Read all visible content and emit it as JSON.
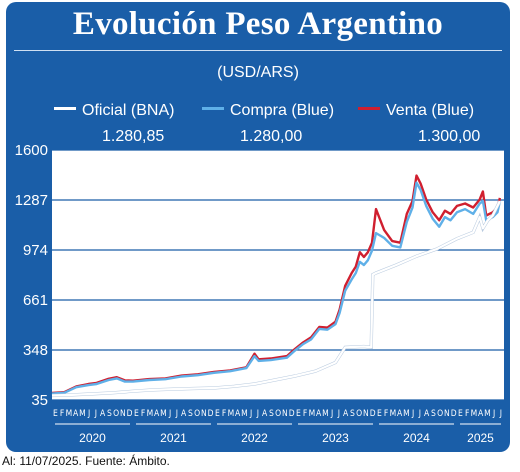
{
  "header": {
    "title": "Evolución Peso Argentino",
    "subtitle": "(USD/ARS)"
  },
  "legend": [
    {
      "label": "Oficial (BNA)",
      "value": "1.280,85",
      "color": "#ffffff"
    },
    {
      "label": "Compra (Blue)",
      "value": "1.280,00",
      "color": "#5fb0e8"
    },
    {
      "label": "Venta (Blue)",
      "value": "1.300,00",
      "color": "#d01f2f"
    }
  ],
  "footer": {
    "source": "Al: 11/07/2025. Fuente: Ámbito."
  },
  "colors": {
    "background": "#1a5ea8",
    "plot": "#ffffff",
    "oficial": "#ffffff",
    "compra": "#5fb0e8",
    "venta": "#d01f2f"
  },
  "chart_data": {
    "type": "line",
    "ylim": [
      35,
      1600
    ],
    "yticks": [
      "1600",
      "1287",
      "974",
      "661",
      "348",
      "35"
    ],
    "ytick_values": [
      1600,
      1287,
      974,
      661,
      348,
      35
    ],
    "grid": true,
    "legend_position": "top",
    "x_start": "2020-01",
    "x_end": "2025-07",
    "month_letters": [
      "E",
      "F",
      "M",
      "A",
      "M",
      "J",
      "J",
      "A",
      "S",
      "O",
      "N",
      "D",
      "E",
      "F",
      "M",
      "A",
      "M",
      "J",
      "J",
      "A",
      "S",
      "O",
      "N",
      "D",
      "E",
      "F",
      "M",
      "A",
      "M",
      "J",
      "J",
      "A",
      "S",
      "O",
      "N",
      "D",
      "E",
      "F",
      "M",
      "A",
      "M",
      "J",
      "J",
      "A",
      "S",
      "O",
      "N",
      "D",
      "E",
      "F",
      "M",
      "A",
      "M",
      "J",
      "J",
      "A",
      "S",
      "O",
      "N",
      "D",
      "E",
      "F",
      "M",
      "A",
      "M",
      "J",
      "J"
    ],
    "years": [
      "2020",
      "2021",
      "2022",
      "2023",
      "2024",
      "2025"
    ],
    "series": [
      {
        "name": "Oficial (BNA)",
        "x": [
          2020.0,
          2020.25,
          2020.5,
          2020.75,
          2021.0,
          2021.25,
          2021.5,
          2021.75,
          2022.0,
          2022.25,
          2022.5,
          2022.75,
          2023.0,
          2023.25,
          2023.5,
          2023.62,
          2023.85,
          2023.94,
          2023.96,
          2024.0,
          2024.25,
          2024.5,
          2024.75,
          2025.0,
          2025.2,
          2025.28,
          2025.32,
          2025.38,
          2025.44,
          2025.5,
          2025.53
        ],
        "values": [
          63,
          67,
          73,
          80,
          90,
          98,
          103,
          107,
          110,
          121,
          135,
          160,
          185,
          215,
          270,
          365,
          370,
          365,
          820,
          830,
          880,
          935,
          980,
          1045,
          1085,
          1180,
          1110,
          1160,
          1190,
          1250,
          1280
        ]
      },
      {
        "name": "Compra (Blue)",
        "x": [
          2020.0,
          2020.15,
          2020.3,
          2020.45,
          2020.55,
          2020.7,
          2020.8,
          2020.9,
          2021.0,
          2021.2,
          2021.4,
          2021.6,
          2021.8,
          2022.0,
          2022.2,
          2022.4,
          2022.5,
          2022.55,
          2022.7,
          2022.9,
          2023.0,
          2023.1,
          2023.2,
          2023.3,
          2023.4,
          2023.5,
          2023.55,
          2023.62,
          2023.7,
          2023.75,
          2023.8,
          2023.85,
          2023.9,
          2023.95,
          2024.0,
          2024.1,
          2024.2,
          2024.3,
          2024.38,
          2024.45,
          2024.5,
          2024.55,
          2024.62,
          2024.7,
          2024.78,
          2024.85,
          2024.92,
          2025.0,
          2025.1,
          2025.2,
          2025.28,
          2025.32,
          2025.36,
          2025.44,
          2025.5,
          2025.53
        ],
        "values": [
          75,
          80,
          115,
          128,
          135,
          160,
          170,
          150,
          150,
          160,
          165,
          182,
          190,
          205,
          215,
          235,
          310,
          280,
          285,
          300,
          345,
          385,
          415,
          480,
          475,
          510,
          580,
          720,
          790,
          830,
          900,
          880,
          910,
          970,
          1080,
          1050,
          1000,
          990,
          1150,
          1240,
          1395,
          1350,
          1250,
          1170,
          1120,
          1180,
          1160,
          1210,
          1230,
          1200,
          1265,
          1280,
          1160,
          1180,
          1210,
          1280
        ]
      },
      {
        "name": "Venta (Blue)",
        "x": [
          2020.0,
          2020.15,
          2020.3,
          2020.45,
          2020.55,
          2020.7,
          2020.8,
          2020.9,
          2021.0,
          2021.2,
          2021.4,
          2021.6,
          2021.8,
          2022.0,
          2022.2,
          2022.4,
          2022.5,
          2022.55,
          2022.7,
          2022.9,
          2023.0,
          2023.1,
          2023.2,
          2023.3,
          2023.4,
          2023.5,
          2023.55,
          2023.62,
          2023.7,
          2023.75,
          2023.8,
          2023.85,
          2023.9,
          2023.95,
          2024.0,
          2024.1,
          2024.2,
          2024.3,
          2024.38,
          2024.45,
          2024.5,
          2024.55,
          2024.62,
          2024.7,
          2024.78,
          2024.85,
          2024.92,
          2025.0,
          2025.1,
          2025.2,
          2025.28,
          2025.32,
          2025.36,
          2025.44,
          2025.5,
          2025.53
        ],
        "values": [
          79,
          84,
          120,
          135,
          142,
          168,
          178,
          158,
          156,
          166,
          170,
          188,
          196,
          210,
          220,
          240,
          325,
          290,
          295,
          310,
          355,
          395,
          428,
          492,
          488,
          525,
          600,
          750,
          830,
          870,
          960,
          930,
          960,
          1020,
          1230,
          1100,
          1030,
          1020,
          1200,
          1280,
          1440,
          1390,
          1290,
          1210,
          1160,
          1220,
          1200,
          1250,
          1265,
          1240,
          1290,
          1340,
          1190,
          1210,
          1240,
          1300
        ]
      }
    ]
  }
}
